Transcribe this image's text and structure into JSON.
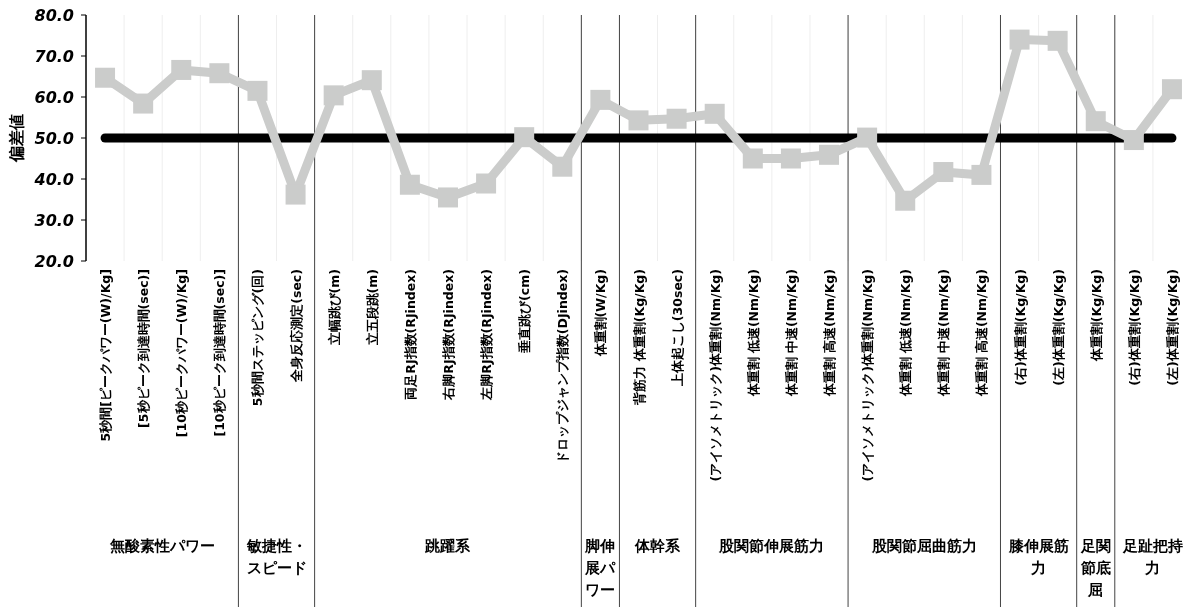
{
  "chart_data": {
    "type": "line",
    "ylabel": "偏差値",
    "categories": [
      "5秒間[ピークパワー(W)/Kg]",
      "[5秒ピーク到達時間(sec)]",
      "[10秒ピークパワー(W)/Kg]",
      "[10秒ピーク到達時間(sec)]",
      "5秒間ステッピング(回)",
      "全身反応測定(sec)",
      "立幅跳び(m)",
      "立五段跳(m)",
      "両足RJ指数(RJindex)",
      "右脚RJ指数(RJindex)",
      "左脚RJ指数(RJindex)",
      "垂直跳び(cm)",
      "ドロップジャンプ指数(DJindex)",
      "体重割(W/Kg)",
      "背筋力 体重割(Kg/Kg)",
      "上体起こし(30sec)",
      "(アイソメトリック)体重割(Nm/Kg)",
      "体重割 低速(Nm/Kg)",
      "体重割 中速(Nm/Kg)",
      "体重割 高速(Nm/Kg)",
      "(アイソメトリック)体重割(Nm/Kg)",
      "体重割 低速(Nm/Kg)",
      "体重割 中速(Nm/Kg)",
      "体重割 高速(Nm/Kg)",
      "(右)体重割(Kg/Kg)",
      "(左)体重割(Kg/Kg)",
      "体重割(Kg/Kg)",
      "(右)体重割(Kg/Kg)",
      "(左)体重割(Kg/Kg)"
    ],
    "series": [
      {
        "color": "#cbcccb",
        "values": [
          64.7,
          58.4,
          66.6,
          65.8,
          61.5,
          36.2,
          60.4,
          64.1,
          38.6,
          35.5,
          38.9,
          50.2,
          43.0,
          59.3,
          54.3,
          54.7,
          55.9,
          45.0,
          45.0,
          45.9,
          50.1,
          34.7,
          41.7,
          41.0,
          74.0,
          73.7,
          54.1,
          49.5,
          61.9
        ]
      }
    ],
    "ylim": [
      20,
      80
    ],
    "yticks": [
      {
        "value": 20,
        "label": "20.0"
      },
      {
        "value": 30,
        "label": "30.0"
      },
      {
        "value": 40,
        "label": "40.0"
      },
      {
        "value": 50,
        "label": "50.0"
      },
      {
        "value": 60,
        "label": "60.0"
      },
      {
        "value": 70,
        "label": "70.0"
      },
      {
        "value": 80,
        "label": "80.0"
      }
    ],
    "grid": "x",
    "marker": "square",
    "line_style": "solid",
    "ref_lines": [
      {
        "axis": "y",
        "value": 50,
        "color": "#000000"
      }
    ],
    "annotations": [
      "無酸素性パワー",
      "敏捷性・スピード",
      "跳躍系",
      "脚伸展パワー",
      "体幹系",
      "股関節伸展筋力",
      "股関節屈曲筋力",
      "膝伸展筋力",
      "足関節底屈",
      "足趾把持力"
    ]
  }
}
